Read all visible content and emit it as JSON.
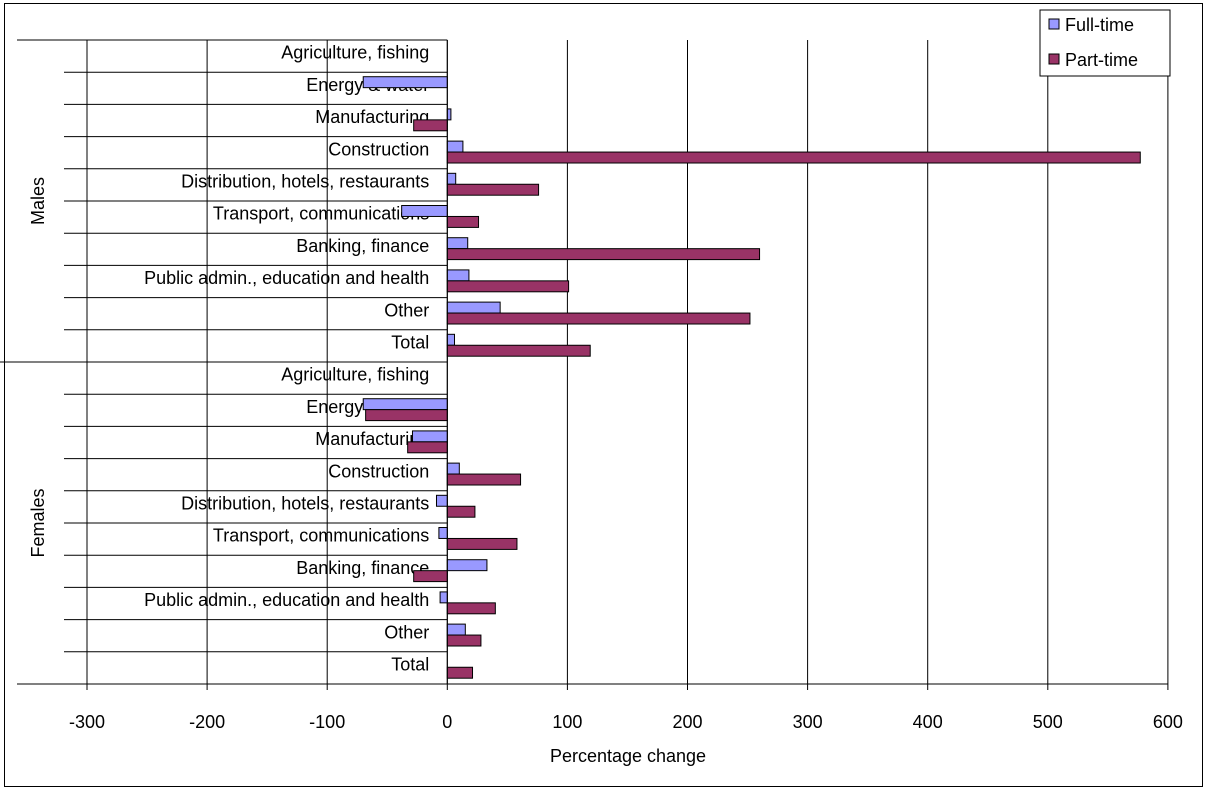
{
  "colors": {
    "full_time": "#9999ff",
    "part_time": "#993366",
    "grid": "#000000",
    "background": "#ffffff"
  },
  "chart_data": {
    "type": "bar",
    "orientation": "horizontal",
    "xlabel": "Percentage change",
    "ylabel": "",
    "xlim": [
      -300,
      600
    ],
    "xticks": [
      -300,
      -200,
      -100,
      0,
      100,
      200,
      300,
      400,
      500,
      600
    ],
    "grid": true,
    "legend_position": "top-right",
    "legend": [
      "Full-time",
      "Part-time"
    ],
    "groups": [
      {
        "name": "Males",
        "categories": [
          "Agriculture, fishing",
          "Energy & water",
          "Manufacturing",
          "Construction",
          "Distribution, hotels, restaurants",
          "Transport, communications",
          "Banking, finance",
          "Public admin., education and health",
          "Other",
          "Total"
        ],
        "series": [
          {
            "name": "Full-time",
            "values": [
              0,
              -70,
              3,
              13,
              7,
              -38,
              17,
              18,
              44,
              6
            ]
          },
          {
            "name": "Part-time",
            "values": [
              0,
              0,
              -28,
              577,
              76,
              26,
              260,
              101,
              252,
              119
            ]
          }
        ]
      },
      {
        "name": "Females",
        "categories": [
          "Agriculture, fishing",
          "Energy & water",
          "Manufacturing",
          "Construction",
          "Distribution, hotels, restaurants",
          "Transport, communications",
          "Banking, finance",
          "Public admin., education and health",
          "Other",
          "Total"
        ],
        "series": [
          {
            "name": "Full-time",
            "values": [
              0,
              -70,
              -29,
              10,
              -9,
              -7,
              33,
              -6,
              15,
              0
            ]
          },
          {
            "name": "Part-time",
            "values": [
              0,
              -68,
              -33,
              61,
              23,
              58,
              -28,
              40,
              28,
              21
            ]
          }
        ]
      }
    ]
  }
}
